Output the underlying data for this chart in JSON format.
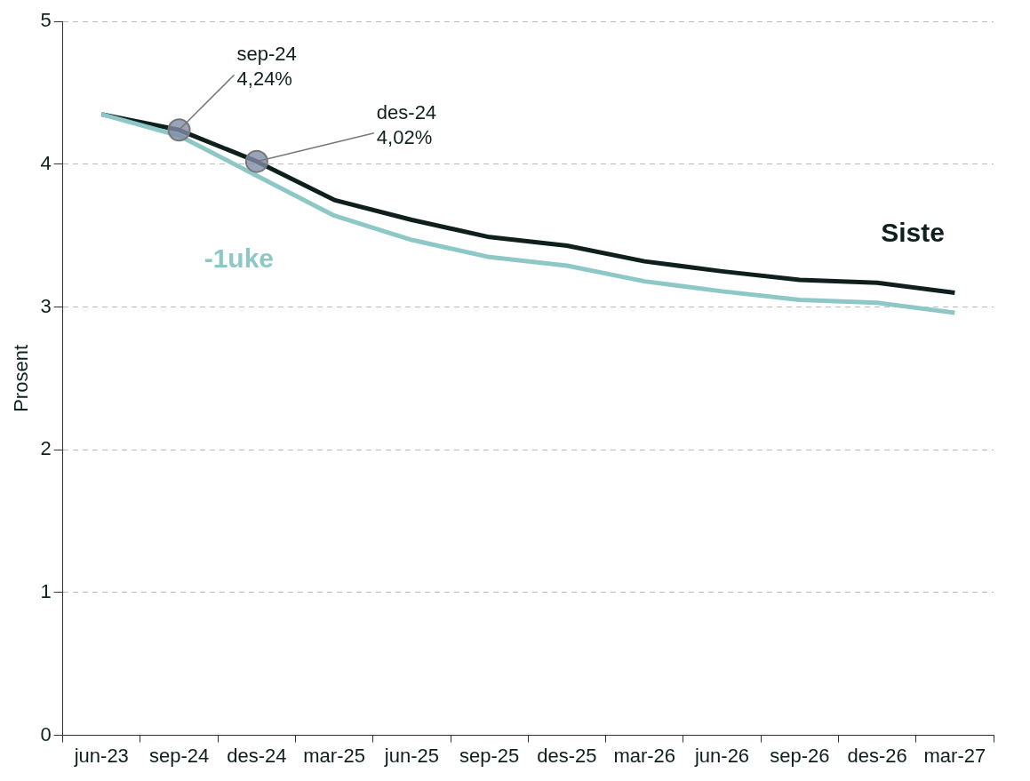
{
  "chart_data": {
    "type": "line",
    "ylabel": "Prosent",
    "categories": [
      "jun-23",
      "sep-24",
      "des-24",
      "mar-25",
      "jun-25",
      "sep-25",
      "des-25",
      "mar-26",
      "jun-26",
      "sep-26",
      "des-26",
      "mar-27"
    ],
    "series": [
      {
        "name": "-1uke",
        "color": "#8dc8c7",
        "values": [
          4.35,
          4.2,
          3.92,
          3.64,
          3.47,
          3.35,
          3.29,
          3.18,
          3.11,
          3.05,
          3.03,
          2.96
        ]
      },
      {
        "name": "Siste",
        "color": "#0f1f1e",
        "values": [
          4.35,
          4.24,
          4.02,
          3.75,
          3.61,
          3.49,
          3.43,
          3.32,
          3.25,
          3.19,
          3.17,
          3.1
        ]
      },
      {
        "type": "scatter",
        "color": "#7f8ca8",
        "marker": "circle",
        "x": [
          "sep-24",
          "des-24"
        ],
        "values": [
          4.24,
          4.02
        ]
      }
    ],
    "ylim": [
      0,
      5
    ],
    "yticks": [
      0,
      1,
      2,
      3,
      4,
      5
    ],
    "grid": "y",
    "legend": false,
    "marker": "none",
    "line_style": "solid",
    "annotations": [
      {
        "text": "sep-24\n4,24%",
        "x": "sep-24",
        "y": 4.24
      },
      {
        "text": "des-24\n4,02%",
        "x": "des-24",
        "y": 4.02
      }
    ]
  }
}
